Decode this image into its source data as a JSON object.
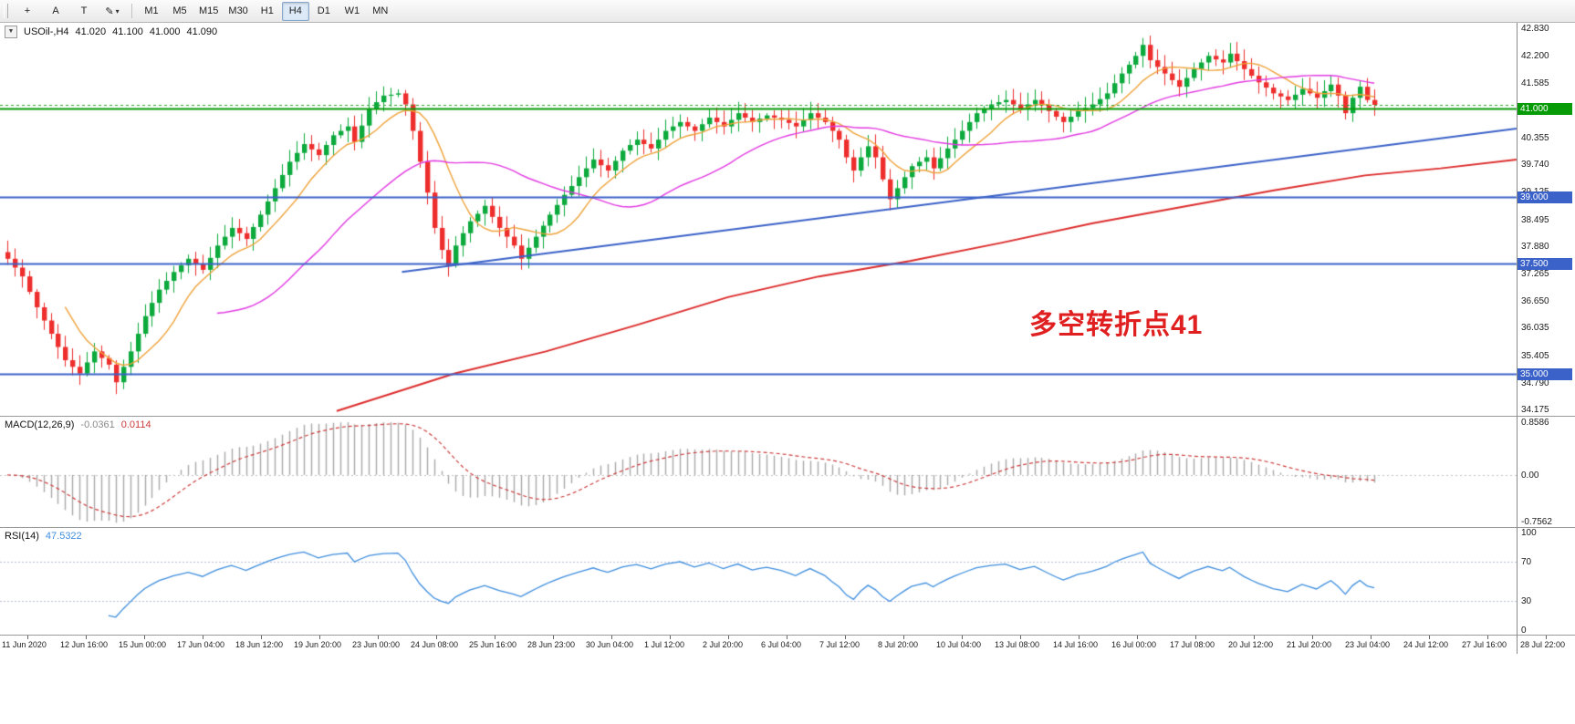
{
  "toolbar": {
    "tools": [
      {
        "name": "crosshair-tool",
        "glyph": "+"
      },
      {
        "name": "arrow-label-tool",
        "glyph": "A"
      },
      {
        "name": "text-tool",
        "glyph": "T"
      },
      {
        "name": "draw-tool",
        "glyph": "✎",
        "chevron": "▾"
      }
    ],
    "timeframes": [
      {
        "label": "M1"
      },
      {
        "label": "M5"
      },
      {
        "label": "M15"
      },
      {
        "label": "M30"
      },
      {
        "label": "H1"
      },
      {
        "label": "H4",
        "active": true
      },
      {
        "label": "D1"
      },
      {
        "label": "W1"
      },
      {
        "label": "MN"
      }
    ]
  },
  "header": {
    "collapse_icon": "▼",
    "symbol": "USOil-,H4",
    "open": "41.020",
    "high": "41.100",
    "low": "41.000",
    "close": "41.090"
  },
  "annotation": {
    "text": "多空转折点41",
    "color": "#e02020"
  },
  "chart_data": {
    "type": "candlestick",
    "title": "USOil-,H4 41.020 41.100 41.000 41.090",
    "symbol": "USOil-",
    "timeframe": "H4",
    "ohlc_last": {
      "open": 41.02,
      "high": 41.1,
      "low": 41.0,
      "close": 41.09
    },
    "y_range": [
      34.04,
      42.95
    ],
    "y_ticks": [
      "42.830",
      "42.200",
      "41.585",
      "40.970",
      "40.355",
      "39.740",
      "39.125",
      "38.495",
      "37.880",
      "37.265",
      "36.650",
      "36.035",
      "35.405",
      "34.790",
      "34.175"
    ],
    "x_labels": [
      "11 Jun 2020",
      "12 Jun 16:00",
      "15 Jun 00:00",
      "17 Jun 04:00",
      "18 Jun 12:00",
      "19 Jun 20:00",
      "23 Jun 00:00",
      "24 Jun 08:00",
      "25 Jun 16:00",
      "28 Jun 23:00",
      "30 Jun 04:00",
      "1 Jul 12:00",
      "2 Jul 20:00",
      "6 Jul 04:00",
      "7 Jul 12:00",
      "8 Jul 20:00",
      "10 Jul 04:00",
      "13 Jul 08:00",
      "14 Jul 16:00",
      "16 Jul 00:00",
      "17 Jul 08:00",
      "20 Jul 12:00",
      "21 Jul 20:00",
      "23 Jul 04:00",
      "24 Jul 12:00",
      "27 Jul 16:00",
      "28 Jul 22:00"
    ],
    "closes": [
      37.6,
      37.4,
      37.2,
      36.85,
      36.5,
      36.2,
      35.9,
      35.6,
      35.3,
      35.15,
      35.0,
      35.25,
      35.5,
      35.35,
      35.2,
      34.8,
      35.15,
      35.5,
      35.9,
      36.3,
      36.6,
      36.9,
      37.1,
      37.3,
      37.45,
      37.6,
      37.48,
      37.35,
      37.62,
      37.9,
      38.1,
      38.3,
      38.18,
      38.05,
      38.32,
      38.6,
      38.9,
      39.2,
      39.5,
      39.8,
      40.0,
      40.2,
      40.08,
      39.95,
      40.18,
      40.4,
      40.5,
      40.6,
      40.25,
      40.62,
      41.0,
      41.15,
      41.3,
      41.32,
      41.35,
      41.1,
      40.5,
      39.8,
      39.1,
      38.3,
      37.8,
      37.45,
      37.9,
      38.18,
      38.45,
      38.62,
      38.8,
      38.55,
      38.3,
      38.1,
      37.9,
      37.6,
      37.85,
      38.1,
      38.35,
      38.6,
      38.82,
      39.05,
      39.25,
      39.45,
      39.65,
      39.85,
      39.72,
      39.6,
      39.82,
      40.05,
      40.18,
      40.3,
      40.2,
      40.1,
      40.3,
      40.5,
      40.6,
      40.7,
      40.6,
      40.5,
      40.65,
      40.8,
      40.7,
      40.6,
      40.75,
      40.9,
      40.8,
      40.7,
      40.78,
      40.85,
      40.8,
      40.75,
      40.68,
      40.6,
      40.75,
      40.9,
      40.8,
      40.7,
      40.5,
      40.3,
      39.9,
      39.6,
      39.9,
      40.15,
      39.9,
      39.4,
      38.95,
      39.2,
      39.45,
      39.7,
      39.8,
      39.9,
      39.65,
      39.88,
      40.1,
      40.3,
      40.5,
      40.7,
      40.9,
      41.0,
      41.1,
      41.15,
      41.2,
      41.1,
      41.0,
      41.1,
      41.2,
      41.08,
      40.95,
      40.82,
      40.7,
      40.82,
      40.95,
      41.02,
      41.1,
      41.22,
      41.35,
      41.58,
      41.8,
      42.0,
      42.2,
      42.45,
      42.1,
      41.95,
      41.8,
      41.65,
      41.5,
      41.7,
      41.9,
      42.05,
      42.2,
      42.12,
      42.05,
      42.25,
      42.08,
      41.9,
      41.75,
      41.6,
      41.48,
      41.35,
      41.28,
      41.2,
      41.32,
      41.45,
      41.35,
      41.25,
      41.4,
      41.55,
      41.3,
      40.9,
      41.25,
      41.5,
      41.2,
      41.09
    ],
    "hlines": [
      {
        "price": 41.0,
        "color": "#079b07",
        "width": 2,
        "style": "solid",
        "badge": "41.000",
        "name": "level-41"
      },
      {
        "price": 41.09,
        "color": "#2da32d",
        "width": 1,
        "style": "dash",
        "name": "bid-line"
      },
      {
        "price": 39.0,
        "color": "#3b62c8",
        "width": 2,
        "style": "solid",
        "badge": "39.000",
        "name": "level-39"
      },
      {
        "price": 37.5,
        "color": "#3b62c8",
        "width": 2,
        "style": "solid",
        "badge": "37.500",
        "name": "level-37-5"
      },
      {
        "price": 35.0,
        "color": "#3b62c8",
        "width": 2,
        "style": "solid",
        "badge": "35.000",
        "name": "level-35"
      }
    ],
    "trendline": {
      "x1": 0.265,
      "p1": 37.3,
      "x2": 1.0,
      "p2": 40.55,
      "color": "#3b62c8",
      "width": 2
    },
    "ma_overlays": [
      {
        "name": "ma-fast",
        "period": 9,
        "color": "#efa33a"
      },
      {
        "name": "ma-slow",
        "period": 30,
        "color": "#e23ae2"
      }
    ],
    "ma_long": {
      "name": "ma-long",
      "color": "#dd2c2c",
      "width": 2,
      "points": [
        [
          0.222,
          34.15
        ],
        [
          0.3,
          35.0
        ],
        [
          0.36,
          35.5
        ],
        [
          0.42,
          36.1
        ],
        [
          0.48,
          36.73
        ],
        [
          0.54,
          37.2
        ],
        [
          0.6,
          37.55
        ],
        [
          0.66,
          37.96
        ],
        [
          0.72,
          38.4
        ],
        [
          0.78,
          38.78
        ],
        [
          0.84,
          39.15
        ],
        [
          0.9,
          39.49
        ],
        [
          0.95,
          39.65
        ],
        [
          1.0,
          39.85
        ]
      ]
    },
    "indicators": {
      "macd": {
        "label": "MACD(12,26,9)",
        "main_value": "-0.0361",
        "signal_value": "0.0114",
        "axis": [
          "0.8586",
          "0.00",
          "-0.7562"
        ],
        "axis_values": [
          0.8586,
          0,
          -0.7562
        ],
        "histogram_color": "#a9a9a9",
        "signal_color": "#cc3c3c"
      },
      "rsi": {
        "label": "RSI(14)",
        "value": "47.5322",
        "axis": [
          "100",
          "70",
          "30",
          "0"
        ],
        "axis_values": [
          100,
          70,
          30,
          0
        ],
        "levels": [
          70,
          30
        ],
        "color": "#3e8ede",
        "range": [
          0,
          100
        ]
      }
    }
  }
}
